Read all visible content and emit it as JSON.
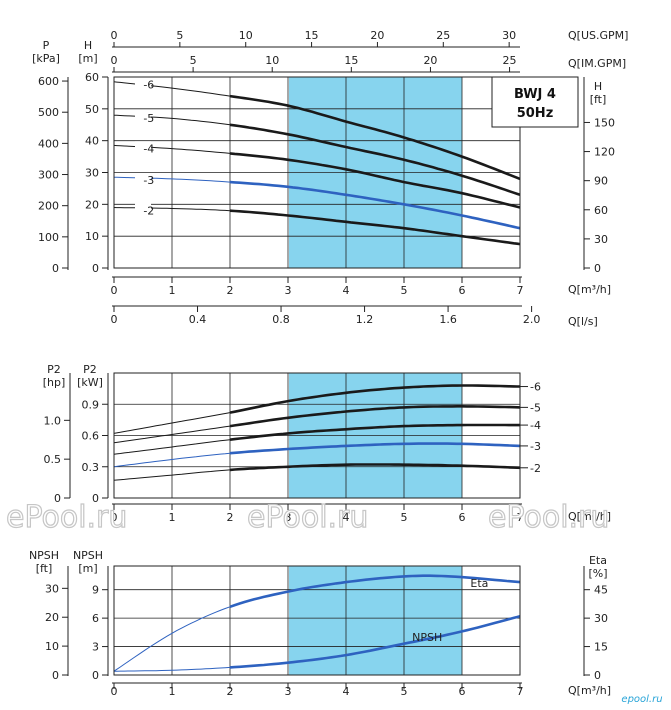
{
  "model": {
    "line1": "BWJ 4",
    "line2": "50Hz"
  },
  "watermark": "ePool.ru",
  "logo": "epool.ru",
  "axes": {
    "top_usgpm": {
      "label": "Q[US.GPM]",
      "ticks": [
        "0",
        "5",
        "10",
        "15",
        "20",
        "25",
        "30"
      ]
    },
    "top_imgpm": {
      "label": "Q[IM.GPM]",
      "ticks": [
        "0",
        "5",
        "10",
        "15",
        "20",
        "25"
      ]
    },
    "left_p": {
      "unit1": "P",
      "unit2": "[kPa]",
      "ticks": [
        "0",
        "100",
        "200",
        "300",
        "400",
        "500",
        "600"
      ]
    },
    "left_h": {
      "unit1": "H",
      "unit2": "[m]",
      "ticks": [
        "0",
        "10",
        "20",
        "30",
        "40",
        "50",
        "60"
      ]
    },
    "right_h": {
      "unit1": "H",
      "unit2": "[ft]",
      "ticks": [
        "0",
        "30",
        "60",
        "90",
        "120",
        "150"
      ]
    },
    "q_m3h": {
      "label": "Q[m³/h]",
      "ticks": [
        "0",
        "1",
        "2",
        "3",
        "4",
        "5",
        "6",
        "7"
      ]
    },
    "q_ls": {
      "label": "Q[l/s]",
      "ticks": [
        "0",
        "0.4",
        "0.8",
        "1.2",
        "1.6",
        "2.0"
      ]
    },
    "p2_hp": {
      "unit1": "P2",
      "unit2": "[hp]",
      "ticks": [
        "0",
        "0.5",
        "1.0"
      ]
    },
    "p2_kw": {
      "unit1": "P2",
      "unit2": "[kW]",
      "ticks": [
        "0",
        "0.3",
        "0.6",
        "0.9"
      ]
    },
    "q2": {
      "label": "Q[m³/h]",
      "ticks": [
        "0",
        "1",
        "2",
        "3",
        "4",
        "5",
        "6",
        "7"
      ]
    },
    "npsh_ft": {
      "unit1": "NPSH",
      "unit2": "[ft]",
      "ticks": [
        "0",
        "10",
        "20",
        "30"
      ]
    },
    "npsh_m": {
      "unit1": "NPSH",
      "unit2": "[m]",
      "ticks": [
        "0",
        "3",
        "6",
        "9"
      ]
    },
    "eta": {
      "unit1": "Eta",
      "unit2": "[%]",
      "ticks": [
        "0",
        "15",
        "30",
        "45"
      ]
    },
    "q3": {
      "label": "Q[m³/h]",
      "ticks": [
        "0",
        "1",
        "2",
        "3",
        "4",
        "5",
        "6",
        "7"
      ]
    }
  },
  "chart_data": [
    {
      "type": "line",
      "x_label": "Q[m³/h]",
      "y_label": "H [m]",
      "xlim": [
        0,
        7
      ],
      "ylim": [
        0,
        60
      ],
      "grid": true,
      "highlight_band": [
        3,
        6
      ],
      "band_color": "#87d4ee",
      "series": [
        {
          "name": "-6",
          "thin_until": 2,
          "color": "#1a1a1a",
          "points": [
            [
              0,
              58.5
            ],
            [
              1,
              56.5
            ],
            [
              2,
              54
            ],
            [
              3,
              51
            ],
            [
              4,
              46
            ],
            [
              5,
              41
            ],
            [
              6,
              35
            ],
            [
              7,
              28
            ]
          ]
        },
        {
          "name": "-5",
          "thin_until": 2,
          "color": "#1a1a1a",
          "points": [
            [
              0,
              48
            ],
            [
              1,
              47
            ],
            [
              2,
              45
            ],
            [
              3,
              42
            ],
            [
              4,
              38
            ],
            [
              5,
              34
            ],
            [
              6,
              29
            ],
            [
              7,
              23
            ]
          ]
        },
        {
          "name": "-4",
          "thin_until": 2,
          "color": "#1a1a1a",
          "points": [
            [
              0,
              38.5
            ],
            [
              1,
              37.5
            ],
            [
              2,
              36
            ],
            [
              3,
              34
            ],
            [
              4,
              31
            ],
            [
              5,
              27
            ],
            [
              6,
              23.5
            ],
            [
              7,
              19
            ]
          ]
        },
        {
          "name": "-3",
          "thin_until": 2,
          "color": "#2e62c0",
          "points": [
            [
              0,
              28.5
            ],
            [
              1,
              28
            ],
            [
              2,
              27
            ],
            [
              3,
              25.5
            ],
            [
              4,
              23
            ],
            [
              5,
              20
            ],
            [
              6,
              16.5
            ],
            [
              7,
              12.5
            ]
          ]
        },
        {
          "name": "-2",
          "thin_until": 2,
          "color": "#1a1a1a",
          "points": [
            [
              0,
              19
            ],
            [
              1,
              18.7
            ],
            [
              2,
              18
            ],
            [
              3,
              16.5
            ],
            [
              4,
              14.5
            ],
            [
              5,
              12.5
            ],
            [
              6,
              10
            ],
            [
              7,
              7.5
            ]
          ]
        }
      ]
    },
    {
      "type": "line",
      "x_label": "Q[m³/h]",
      "y_label": "P2 [kW]",
      "xlim": [
        0,
        7
      ],
      "ylim": [
        0,
        1.2
      ],
      "grid": true,
      "highlight_band": [
        3,
        6
      ],
      "band_color": "#87d4ee",
      "series": [
        {
          "name": "-6",
          "thin_until": 2,
          "color": "#1a1a1a",
          "points": [
            [
              0,
              0.62
            ],
            [
              1,
              0.72
            ],
            [
              2,
              0.82
            ],
            [
              3,
              0.93
            ],
            [
              4,
              1.01
            ],
            [
              5,
              1.06
            ],
            [
              6,
              1.08
            ],
            [
              7,
              1.07
            ]
          ]
        },
        {
          "name": "-5",
          "thin_until": 2,
          "color": "#1a1a1a",
          "points": [
            [
              0,
              0.53
            ],
            [
              1,
              0.61
            ],
            [
              2,
              0.69
            ],
            [
              3,
              0.77
            ],
            [
              4,
              0.83
            ],
            [
              5,
              0.87
            ],
            [
              6,
              0.88
            ],
            [
              7,
              0.87
            ]
          ]
        },
        {
          "name": "-4",
          "thin_until": 2,
          "color": "#1a1a1a",
          "points": [
            [
              0,
              0.42
            ],
            [
              1,
              0.49
            ],
            [
              2,
              0.56
            ],
            [
              3,
              0.62
            ],
            [
              4,
              0.66
            ],
            [
              5,
              0.69
            ],
            [
              6,
              0.7
            ],
            [
              7,
              0.7
            ]
          ]
        },
        {
          "name": "-3",
          "thin_until": 2,
          "color": "#2e62c0",
          "points": [
            [
              0,
              0.3
            ],
            [
              1,
              0.37
            ],
            [
              2,
              0.43
            ],
            [
              3,
              0.47
            ],
            [
              4,
              0.5
            ],
            [
              5,
              0.52
            ],
            [
              6,
              0.52
            ],
            [
              7,
              0.5
            ]
          ]
        },
        {
          "name": "-2",
          "thin_until": 2,
          "color": "#1a1a1a",
          "points": [
            [
              0,
              0.17
            ],
            [
              1,
              0.22
            ],
            [
              2,
              0.27
            ],
            [
              3,
              0.3
            ],
            [
              4,
              0.32
            ],
            [
              5,
              0.32
            ],
            [
              6,
              0.31
            ],
            [
              7,
              0.29
            ]
          ]
        }
      ]
    },
    {
      "type": "line",
      "x_label": "Q[m³/h]",
      "y_label": "NPSH [m] / Eta [%]",
      "xlim": [
        0,
        7
      ],
      "grid": true,
      "highlight_band": [
        3,
        6
      ],
      "band_color": "#87d4ee",
      "series": [
        {
          "name": "Eta",
          "axis": "eta",
          "unit": "%",
          "thin_until": 2,
          "color": "#2e62c0",
          "points": [
            [
              0,
              2
            ],
            [
              1,
              22
            ],
            [
              2,
              36
            ],
            [
              3,
              44
            ],
            [
              4,
              49
            ],
            [
              5,
              52
            ],
            [
              5.8,
              52
            ],
            [
              7,
              49
            ]
          ]
        },
        {
          "name": "NPSH",
          "axis": "npsh_m",
          "unit": "m",
          "thin_until": 2,
          "color": "#2e62c0",
          "points": [
            [
              0,
              0.4
            ],
            [
              1,
              0.5
            ],
            [
              2,
              0.8
            ],
            [
              3,
              1.3
            ],
            [
              4,
              2.1
            ],
            [
              5,
              3.3
            ],
            [
              6,
              4.6
            ],
            [
              7,
              6.2
            ]
          ]
        }
      ]
    }
  ]
}
